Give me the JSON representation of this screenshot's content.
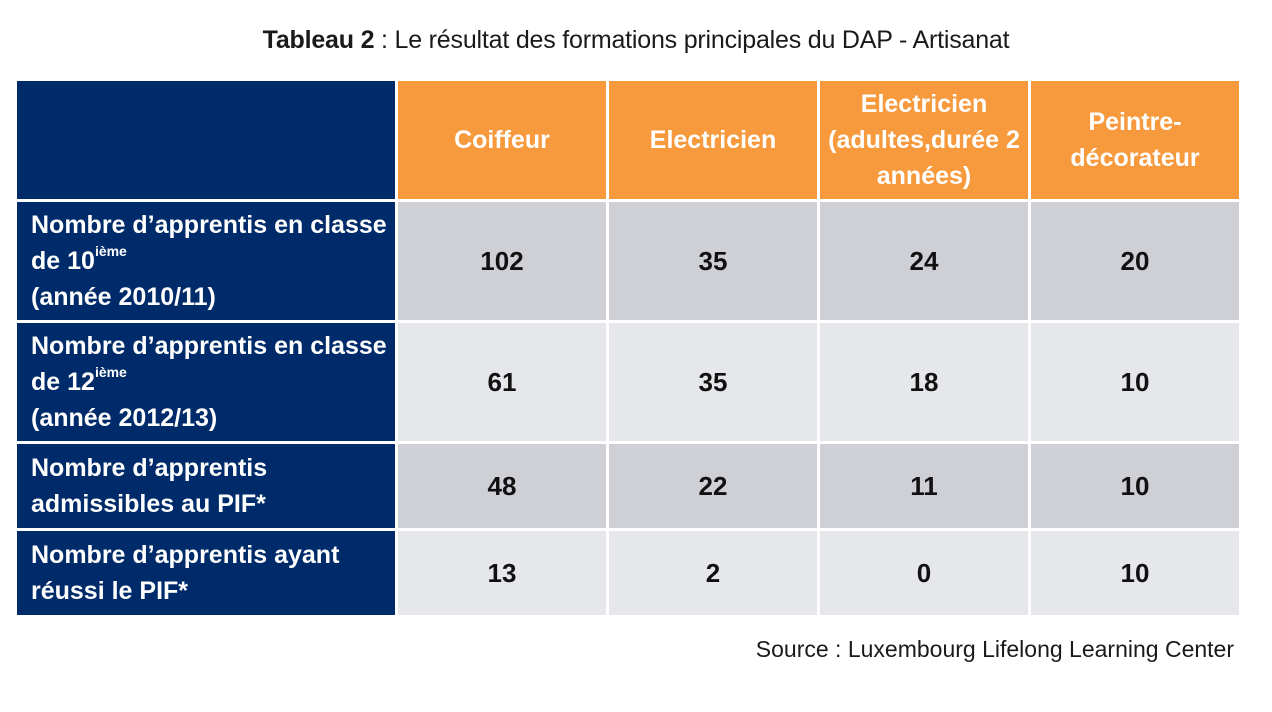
{
  "title": {
    "label": "Tableau 2",
    "separator": " : ",
    "text": "Le résultat des formations principales du DAP - Artisanat"
  },
  "columns": [
    "Coiffeur",
    "Electricien",
    "Electricien (adultes,durée 2 années)",
    "Peintre-décorateur"
  ],
  "rows": [
    {
      "label_pre": "Nombre d’apprentis en classe de 10",
      "label_sup": "ième",
      "label_post": "(année 2010/11)",
      "values": [
        "102",
        "35",
        "24",
        "20"
      ]
    },
    {
      "label_pre": "Nombre d’apprentis en classe de 12",
      "label_sup": "ième",
      "label_post": "(année 2012/13)",
      "values": [
        "61",
        "35",
        "18",
        "10"
      ]
    },
    {
      "label": "Nombre d’apprentis admissibles au PIF*",
      "values": [
        "48",
        "22",
        "11",
        "10"
      ]
    },
    {
      "label": "Nombre d’apprentis ayant réussi le PIF*",
      "values": [
        "13",
        "2",
        "0",
        "10"
      ]
    }
  ],
  "source": "Source : Luxembourg Lifelong Learning Center",
  "colors": {
    "header_orange": "#f79a3e",
    "row_header_navy": "#002b6a",
    "cell_dark": "#ced0d6",
    "cell_light": "#e6e7ea"
  }
}
